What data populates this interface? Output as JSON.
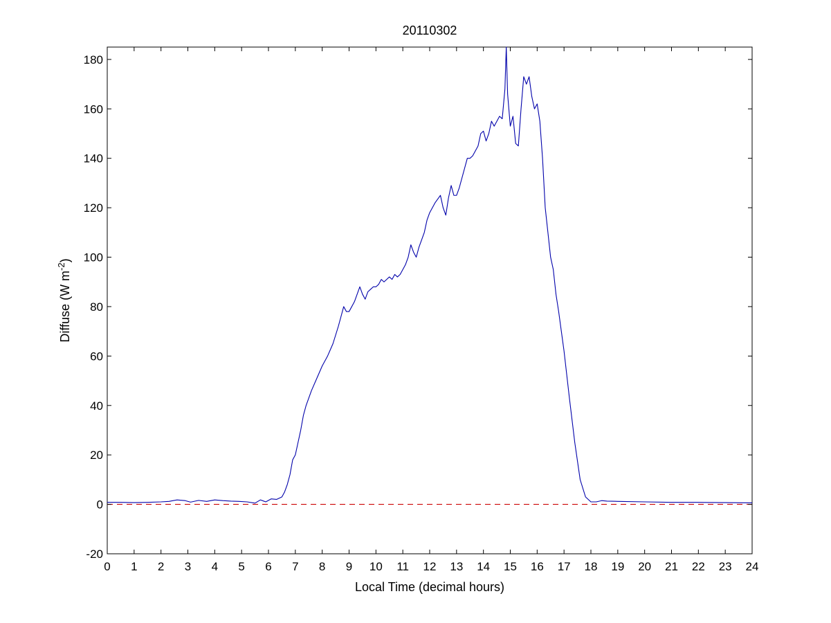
{
  "chart_data": {
    "type": "line",
    "title": "20110302",
    "xlabel": "Local Time (decimal hours)",
    "ylabel_main": "Diffuse (W m",
    "ylabel_sup": "-2",
    "ylabel_close": ")",
    "xlim": [
      0,
      24
    ],
    "ylim": [
      -20,
      185
    ],
    "xticks": [
      0,
      1,
      2,
      3,
      4,
      5,
      6,
      7,
      8,
      9,
      10,
      11,
      12,
      13,
      14,
      15,
      16,
      17,
      18,
      19,
      20,
      21,
      22,
      23,
      24
    ],
    "yticks": [
      -20,
      0,
      20,
      40,
      60,
      80,
      100,
      120,
      140,
      160,
      180
    ],
    "grid": false,
    "colors": {
      "series": "#0000aa",
      "reference": "#cc0000"
    },
    "series": [
      {
        "x": [
          0,
          0.5,
          1,
          1.5,
          2,
          2.3,
          2.6,
          2.9,
          3.1,
          3.4,
          3.7,
          4.0,
          4.3,
          4.6,
          4.9,
          5.2,
          5.5,
          5.7,
          5.9,
          6.1,
          6.3,
          6.5,
          6.6,
          6.7,
          6.8,
          6.9,
          7.0,
          7.1,
          7.2,
          7.3,
          7.4,
          7.5,
          7.6,
          7.8,
          8.0,
          8.2,
          8.4,
          8.6,
          8.7,
          8.8,
          8.9,
          9.0,
          9.1,
          9.2,
          9.3,
          9.4,
          9.5,
          9.6,
          9.7,
          9.8,
          9.9,
          10.0,
          10.1,
          10.2,
          10.3,
          10.4,
          10.5,
          10.6,
          10.7,
          10.8,
          10.9,
          11.0,
          11.1,
          11.2,
          11.3,
          11.4,
          11.5,
          11.6,
          11.7,
          11.8,
          11.9,
          12.0,
          12.2,
          12.4,
          12.5,
          12.6,
          12.7,
          12.8,
          12.9,
          13.0,
          13.1,
          13.2,
          13.3,
          13.4,
          13.5,
          13.6,
          13.7,
          13.8,
          13.9,
          14.0,
          14.1,
          14.2,
          14.3,
          14.4,
          14.5,
          14.6,
          14.7,
          14.8,
          14.85,
          14.9,
          15.0,
          15.1,
          15.2,
          15.3,
          15.4,
          15.5,
          15.6,
          15.7,
          15.8,
          15.9,
          16.0,
          16.1,
          16.2,
          16.3,
          16.4,
          16.5,
          16.6,
          16.7,
          16.8,
          16.9,
          17.0,
          17.2,
          17.4,
          17.6,
          17.8,
          18.0,
          18.2,
          18.4,
          18.6,
          19.0,
          20.0,
          21.0,
          22.0,
          23.0,
          24.0
        ],
        "y": [
          0.8,
          0.8,
          0.7,
          0.8,
          1.0,
          1.2,
          1.8,
          1.5,
          0.9,
          1.6,
          1.2,
          1.8,
          1.5,
          1.3,
          1.2,
          1.0,
          0.5,
          1.8,
          1.0,
          2.2,
          2.0,
          3.0,
          5.0,
          8.0,
          12.0,
          18.0,
          20.0,
          25.0,
          30.0,
          36.0,
          40.0,
          43.0,
          46.0,
          51.0,
          56.0,
          60.0,
          65.0,
          72.0,
          76.0,
          80.0,
          78.0,
          78.0,
          80.0,
          82.0,
          85.0,
          88.0,
          85.0,
          83.0,
          86.0,
          87.0,
          88.0,
          88.0,
          89.0,
          91.0,
          90.0,
          91.0,
          92.0,
          91.0,
          93.0,
          92.0,
          93.0,
          95.0,
          97.0,
          100.0,
          105.0,
          102.0,
          100.0,
          104.0,
          107.0,
          110.0,
          115.0,
          118.0,
          122.0,
          125.0,
          120.0,
          117.0,
          124.0,
          129.0,
          125.0,
          125.0,
          128.0,
          132.0,
          136.0,
          140.0,
          140.0,
          141.0,
          143.0,
          145.0,
          150.0,
          151.0,
          147.0,
          150.0,
          155.0,
          153.0,
          155.0,
          157.0,
          156.0,
          168.0,
          185.0,
          166.0,
          153.0,
          157.0,
          146.0,
          145.0,
          160.0,
          173.0,
          170.0,
          173.0,
          165.0,
          160.0,
          162.0,
          155.0,
          140.0,
          120.0,
          110.0,
          100.0,
          95.0,
          85.0,
          78.0,
          70.0,
          62.0,
          43.0,
          25.0,
          10.0,
          3.0,
          1.0,
          1.0,
          1.5,
          1.3,
          1.2,
          1.0,
          0.8,
          0.8,
          0.7,
          0.6
        ]
      }
    ],
    "reference_line": {
      "y": 0
    }
  }
}
